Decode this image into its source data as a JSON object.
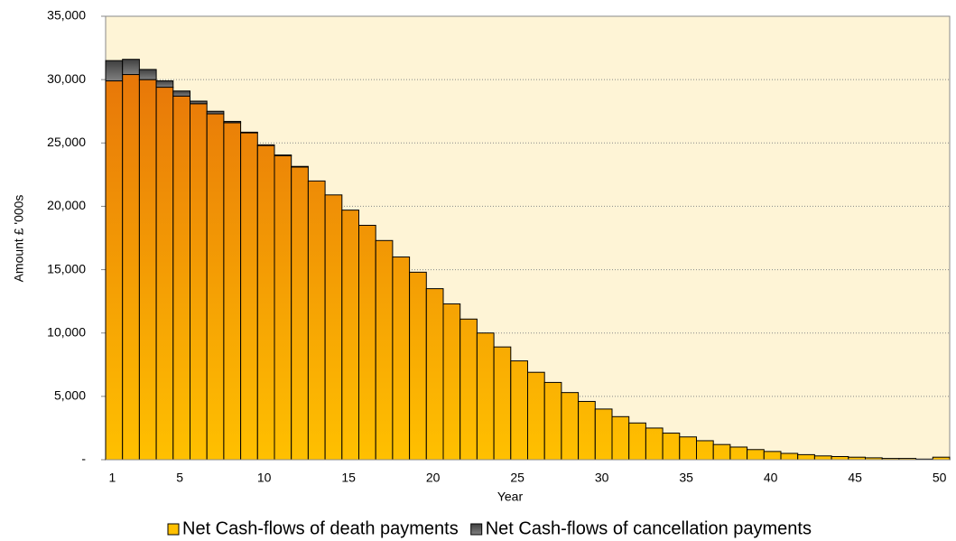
{
  "chart_data": {
    "type": "stacked_bar",
    "x_label": "Year",
    "y_label": "Amount £ '000s",
    "categories": [
      1,
      null,
      null,
      null,
      5,
      null,
      null,
      null,
      null,
      10,
      null,
      null,
      null,
      null,
      15,
      null,
      null,
      null,
      null,
      20,
      null,
      null,
      null,
      null,
      25,
      null,
      null,
      null,
      null,
      30,
      null,
      null,
      null,
      null,
      35,
      null,
      null,
      null,
      null,
      40,
      null,
      null,
      null,
      null,
      45,
      null,
      null,
      null,
      null,
      50
    ],
    "series": [
      {
        "name": "Net Cash-flows of death payments",
        "color": "#e46c0a",
        "values": [
          29900,
          30400,
          30000,
          29400,
          28700,
          28100,
          27300,
          26600,
          25800,
          24800,
          24000,
          23100,
          22000,
          20900,
          19700,
          18500,
          17300,
          16000,
          14800,
          13500,
          12300,
          11100,
          10000,
          8900,
          7800,
          6900,
          6100,
          5300,
          4600,
          4000,
          3400,
          2900,
          2500,
          2100,
          1800,
          1500,
          1200,
          1000,
          800,
          650,
          500,
          400,
          300,
          250,
          200,
          150,
          100,
          100,
          50,
          200
        ]
      },
      {
        "name": "Net Cash-flows of cancellation payments",
        "color": "#808080",
        "values": [
          1600,
          1200,
          800,
          500,
          400,
          200,
          200,
          100,
          50,
          50,
          50,
          50,
          0,
          0,
          0,
          0,
          0,
          0,
          0,
          0,
          0,
          0,
          0,
          0,
          0,
          0,
          0,
          0,
          0,
          0,
          0,
          0,
          0,
          0,
          0,
          0,
          0,
          0,
          0,
          0,
          0,
          0,
          0,
          0,
          0,
          0,
          0,
          0,
          0,
          0
        ]
      }
    ],
    "ylim": [
      0,
      35000
    ],
    "yticks": [
      {
        "value": 0,
        "label": "-"
      },
      {
        "value": 5000,
        "label": "5,000"
      },
      {
        "value": 10000,
        "label": "10,000"
      },
      {
        "value": 15000,
        "label": "15,000"
      },
      {
        "value": 20000,
        "label": "20,000"
      },
      {
        "value": 25000,
        "label": "25,000"
      },
      {
        "value": 30000,
        "label": "30,000"
      },
      {
        "value": 35000,
        "label": "35,000"
      }
    ],
    "grid": true,
    "legend": "bottom"
  }
}
